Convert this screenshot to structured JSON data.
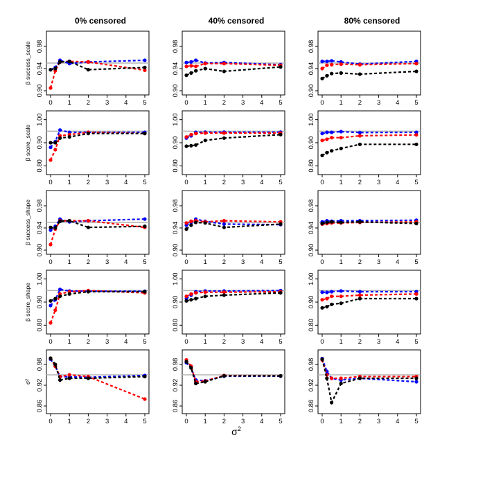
{
  "figure": {
    "column_titles": [
      "0% censored",
      "40% censored",
      "80% censored"
    ],
    "xlabel": "σ",
    "xlabel_superscript": "2",
    "reference_line_color": "#b3b3b3",
    "series_colors": {
      "black": "#000000",
      "red": "#ff0000",
      "blue": "#0000ff"
    }
  },
  "chart_data": [
    {
      "type": "line",
      "row": 0,
      "col": 0,
      "title": "0% censored",
      "ylabel": "β success_scale",
      "xlim": [
        0,
        5
      ],
      "ylim": [
        0.9,
        1.0
      ],
      "yticks": [
        0.9,
        0.94,
        0.98
      ],
      "xticks": [
        0,
        1,
        2,
        3,
        4,
        5
      ],
      "reference": 0.95,
      "x": [
        0,
        0.25,
        0.5,
        1,
        2,
        5
      ],
      "series": [
        {
          "name": "black",
          "values": [
            0.938,
            0.94,
            0.952,
            0.953,
            0.938,
            0.942
          ]
        },
        {
          "name": "red",
          "values": [
            0.905,
            0.936,
            0.952,
            0.953,
            0.952,
            0.937
          ]
        },
        {
          "name": "blue",
          "values": [
            0.938,
            0.942,
            0.955,
            0.949,
            0.952,
            0.955
          ]
        }
      ]
    },
    {
      "type": "line",
      "row": 0,
      "col": 1,
      "title": "40% censored",
      "ylabel": "",
      "xlim": [
        0,
        5
      ],
      "ylim": [
        0.9,
        1.0
      ],
      "yticks": [
        0.9,
        0.94,
        0.98
      ],
      "xticks": [
        0,
        1,
        2,
        3,
        4,
        5
      ],
      "reference": 0.95,
      "x": [
        0,
        0.25,
        0.5,
        1,
        2,
        5
      ],
      "series": [
        {
          "name": "black",
          "values": [
            0.928,
            0.932,
            0.936,
            0.94,
            0.935,
            0.943
          ]
        },
        {
          "name": "red",
          "values": [
            0.944,
            0.945,
            0.944,
            0.949,
            0.949,
            0.946
          ]
        },
        {
          "name": "blue",
          "values": [
            0.951,
            0.952,
            0.955,
            0.95,
            0.951,
            0.947
          ]
        }
      ]
    },
    {
      "type": "line",
      "row": 0,
      "col": 2,
      "title": "80% censored",
      "ylabel": "",
      "xlim": [
        0,
        5
      ],
      "ylim": [
        0.9,
        1.0
      ],
      "yticks": [
        0.9,
        0.94,
        0.98
      ],
      "xticks": [
        0,
        1,
        2,
        3,
        4,
        5
      ],
      "reference": 0.95,
      "x": [
        0,
        0.25,
        0.5,
        1,
        2,
        5
      ],
      "series": [
        {
          "name": "black",
          "values": [
            0.922,
            0.927,
            0.931,
            0.932,
            0.93,
            0.935
          ]
        },
        {
          "name": "red",
          "values": [
            0.94,
            0.946,
            0.947,
            0.948,
            0.947,
            0.949
          ]
        },
        {
          "name": "blue",
          "values": [
            0.953,
            0.953,
            0.954,
            0.952,
            0.948,
            0.953
          ]
        }
      ]
    },
    {
      "type": "line",
      "row": 1,
      "col": 0,
      "title": "",
      "ylabel": "β score_scale",
      "xlim": [
        0,
        5
      ],
      "ylim": [
        0.78,
        1.02
      ],
      "yticks": [
        0.8,
        0.9,
        1.0
      ],
      "xticks": [
        0,
        1,
        2,
        3,
        4,
        5
      ],
      "reference": 0.95,
      "x": [
        0,
        0.25,
        0.5,
        1,
        2,
        5
      ],
      "series": [
        {
          "name": "black",
          "values": [
            0.9,
            0.9,
            0.92,
            0.925,
            0.94,
            0.94
          ]
        },
        {
          "name": "red",
          "values": [
            0.825,
            0.87,
            0.93,
            0.935,
            0.945,
            0.94
          ]
        },
        {
          "name": "blue",
          "values": [
            0.88,
            0.905,
            0.955,
            0.945,
            0.945,
            0.945
          ]
        }
      ]
    },
    {
      "type": "line",
      "row": 1,
      "col": 1,
      "title": "",
      "ylabel": "",
      "xlim": [
        0,
        5
      ],
      "ylim": [
        0.78,
        1.02
      ],
      "yticks": [
        0.8,
        0.9,
        1.0
      ],
      "xticks": [
        0,
        1,
        2,
        3,
        4,
        5
      ],
      "reference": 0.95,
      "x": [
        0,
        0.25,
        0.5,
        1,
        2,
        5
      ],
      "series": [
        {
          "name": "black",
          "values": [
            0.885,
            0.887,
            0.89,
            0.91,
            0.92,
            0.935
          ]
        },
        {
          "name": "red",
          "values": [
            0.925,
            0.935,
            0.94,
            0.942,
            0.942,
            0.942
          ]
        },
        {
          "name": "blue",
          "values": [
            0.92,
            0.93,
            0.945,
            0.946,
            0.946,
            0.946
          ]
        }
      ]
    },
    {
      "type": "line",
      "row": 1,
      "col": 2,
      "title": "",
      "ylabel": "",
      "xlim": [
        0,
        5
      ],
      "ylim": [
        0.78,
        1.02
      ],
      "yticks": [
        0.8,
        0.9,
        1.0
      ],
      "xticks": [
        0,
        1,
        2,
        3,
        4,
        5
      ],
      "reference": 0.95,
      "x": [
        0,
        0.25,
        0.5,
        1,
        2,
        5
      ],
      "series": [
        {
          "name": "black",
          "values": [
            0.845,
            0.857,
            0.865,
            0.875,
            0.893,
            0.893
          ]
        },
        {
          "name": "red",
          "values": [
            0.91,
            0.915,
            0.922,
            0.922,
            0.93,
            0.934
          ]
        },
        {
          "name": "blue",
          "values": [
            0.94,
            0.945,
            0.945,
            0.948,
            0.944,
            0.945
          ]
        }
      ]
    },
    {
      "type": "line",
      "row": 2,
      "col": 0,
      "title": "",
      "ylabel": "β success_shape",
      "xlim": [
        0,
        5
      ],
      "ylim": [
        0.9,
        1.0
      ],
      "yticks": [
        0.9,
        0.94,
        0.98
      ],
      "xticks": [
        0,
        1,
        2,
        3,
        4,
        5
      ],
      "reference": 0.95,
      "x": [
        0,
        0.25,
        0.5,
        1,
        2,
        5
      ],
      "series": [
        {
          "name": "black",
          "values": [
            0.941,
            0.94,
            0.952,
            0.953,
            0.941,
            0.943
          ]
        },
        {
          "name": "red",
          "values": [
            0.91,
            0.938,
            0.953,
            0.953,
            0.953,
            0.941
          ]
        },
        {
          "name": "blue",
          "values": [
            0.936,
            0.943,
            0.956,
            0.951,
            0.953,
            0.956
          ]
        }
      ]
    },
    {
      "type": "line",
      "row": 2,
      "col": 1,
      "title": "",
      "ylabel": "",
      "xlim": [
        0,
        5
      ],
      "ylim": [
        0.9,
        1.0
      ],
      "yticks": [
        0.9,
        0.94,
        0.98
      ],
      "xticks": [
        0,
        1,
        2,
        3,
        4,
        5
      ],
      "reference": 0.95,
      "x": [
        0,
        0.25,
        0.5,
        1,
        2,
        5
      ],
      "series": [
        {
          "name": "black",
          "values": [
            0.938,
            0.945,
            0.95,
            0.949,
            0.941,
            0.947
          ]
        },
        {
          "name": "red",
          "values": [
            0.949,
            0.952,
            0.953,
            0.951,
            0.953,
            0.951
          ]
        },
        {
          "name": "blue",
          "values": [
            0.945,
            0.95,
            0.956,
            0.952,
            0.947,
            0.946
          ]
        }
      ]
    },
    {
      "type": "line",
      "row": 2,
      "col": 2,
      "title": "",
      "ylabel": "",
      "xlim": [
        0,
        5
      ],
      "ylim": [
        0.9,
        1.0
      ],
      "yticks": [
        0.9,
        0.94,
        0.98
      ],
      "xticks": [
        0,
        1,
        2,
        3,
        4,
        5
      ],
      "reference": 0.95,
      "x": [
        0,
        0.25,
        0.5,
        1,
        2,
        5
      ],
      "series": [
        {
          "name": "black",
          "values": [
            0.948,
            0.95,
            0.951,
            0.95,
            0.951,
            0.948
          ]
        },
        {
          "name": "red",
          "values": [
            0.947,
            0.948,
            0.949,
            0.949,
            0.95,
            0.951
          ]
        },
        {
          "name": "blue",
          "values": [
            0.951,
            0.953,
            0.952,
            0.953,
            0.953,
            0.954
          ]
        }
      ]
    },
    {
      "type": "line",
      "row": 3,
      "col": 0,
      "title": "",
      "ylabel": "β score_shape",
      "xlim": [
        0,
        5
      ],
      "ylim": [
        0.78,
        1.02
      ],
      "yticks": [
        0.8,
        0.9,
        1.0
      ],
      "xticks": [
        0,
        1,
        2,
        3,
        4,
        5
      ],
      "reference": 0.95,
      "x": [
        0,
        0.25,
        0.5,
        1,
        2,
        5
      ],
      "series": [
        {
          "name": "black",
          "values": [
            0.905,
            0.915,
            0.925,
            0.935,
            0.945,
            0.945
          ]
        },
        {
          "name": "red",
          "values": [
            0.81,
            0.865,
            0.935,
            0.945,
            0.95,
            0.94
          ]
        },
        {
          "name": "blue",
          "values": [
            0.885,
            0.91,
            0.955,
            0.948,
            0.947,
            0.947
          ]
        }
      ]
    },
    {
      "type": "line",
      "row": 3,
      "col": 1,
      "title": "",
      "ylabel": "",
      "xlim": [
        0,
        5
      ],
      "ylim": [
        0.78,
        1.02
      ],
      "yticks": [
        0.8,
        0.9,
        1.0
      ],
      "xticks": [
        0,
        1,
        2,
        3,
        4,
        5
      ],
      "reference": 0.95,
      "x": [
        0,
        0.25,
        0.5,
        1,
        2,
        5
      ],
      "series": [
        {
          "name": "black",
          "values": [
            0.905,
            0.91,
            0.915,
            0.925,
            0.93,
            0.94
          ]
        },
        {
          "name": "red",
          "values": [
            0.925,
            0.935,
            0.94,
            0.943,
            0.943,
            0.945
          ]
        },
        {
          "name": "blue",
          "values": [
            0.915,
            0.93,
            0.945,
            0.948,
            0.948,
            0.95
          ]
        }
      ]
    },
    {
      "type": "line",
      "row": 3,
      "col": 2,
      "title": "",
      "ylabel": "",
      "xlim": [
        0,
        5
      ],
      "ylim": [
        0.78,
        1.02
      ],
      "yticks": [
        0.8,
        0.9,
        1.0
      ],
      "xticks": [
        0,
        1,
        2,
        3,
        4,
        5
      ],
      "reference": 0.95,
      "x": [
        0,
        0.25,
        0.5,
        1,
        2,
        5
      ],
      "series": [
        {
          "name": "black",
          "values": [
            0.875,
            0.88,
            0.89,
            0.895,
            0.915,
            0.915
          ]
        },
        {
          "name": "red",
          "values": [
            0.91,
            0.915,
            0.925,
            0.925,
            0.93,
            0.935
          ]
        },
        {
          "name": "blue",
          "values": [
            0.943,
            0.942,
            0.945,
            0.948,
            0.945,
            0.945
          ]
        }
      ]
    },
    {
      "type": "line",
      "row": 4,
      "col": 0,
      "title": "",
      "ylabel": "σ²",
      "xlim": [
        0,
        5
      ],
      "ylim": [
        0.85,
        1.01
      ],
      "yticks": [
        0.86,
        0.92,
        0.98
      ],
      "xticks": [
        0,
        1,
        2,
        3,
        4,
        5
      ],
      "reference": 0.95,
      "x": [
        0,
        0.25,
        0.5,
        1,
        2,
        5
      ],
      "series": [
        {
          "name": "black",
          "values": [
            0.998,
            0.98,
            0.935,
            0.94,
            0.94,
            0.945
          ]
        },
        {
          "name": "red",
          "values": [
            0.998,
            0.975,
            0.945,
            0.95,
            0.945,
            0.88
          ]
        },
        {
          "name": "blue",
          "values": [
            0.995,
            0.975,
            0.945,
            0.944,
            0.943,
            0.948
          ]
        }
      ]
    },
    {
      "type": "line",
      "row": 4,
      "col": 1,
      "title": "",
      "ylabel": "",
      "xlim": [
        0,
        5
      ],
      "ylim": [
        0.85,
        1.01
      ],
      "yticks": [
        0.86,
        0.92,
        0.98
      ],
      "xticks": [
        0,
        1,
        2,
        3,
        4,
        5
      ],
      "reference": 0.95,
      "x": [
        0,
        0.25,
        0.5,
        1,
        2,
        5
      ],
      "series": [
        {
          "name": "black",
          "values": [
            0.988,
            0.97,
            0.925,
            0.93,
            0.947,
            0.947
          ]
        },
        {
          "name": "red",
          "values": [
            0.993,
            0.975,
            0.93,
            0.932,
            0.948,
            0.947
          ]
        },
        {
          "name": "blue",
          "values": [
            0.985,
            0.97,
            0.935,
            0.933,
            0.946,
            0.946
          ]
        }
      ]
    },
    {
      "type": "line",
      "row": 4,
      "col": 2,
      "title": "",
      "ylabel": "",
      "xlim": [
        0,
        5
      ],
      "ylim": [
        0.85,
        1.01
      ],
      "yticks": [
        0.86,
        0.92,
        0.98
      ],
      "xticks": [
        0,
        1,
        2,
        3,
        4,
        5
      ],
      "reference": 0.95,
      "x": [
        0,
        0.25,
        0.5,
        1,
        2,
        5
      ],
      "series": [
        {
          "name": "black",
          "values": [
            0.995,
            0.94,
            0.87,
            0.925,
            0.94,
            0.94
          ]
        },
        {
          "name": "red",
          "values": [
            0.993,
            0.95,
            0.94,
            0.94,
            0.945,
            0.945
          ]
        },
        {
          "name": "blue",
          "values": [
            0.997,
            0.96,
            0.94,
            0.935,
            0.94,
            0.93
          ]
        }
      ]
    }
  ]
}
